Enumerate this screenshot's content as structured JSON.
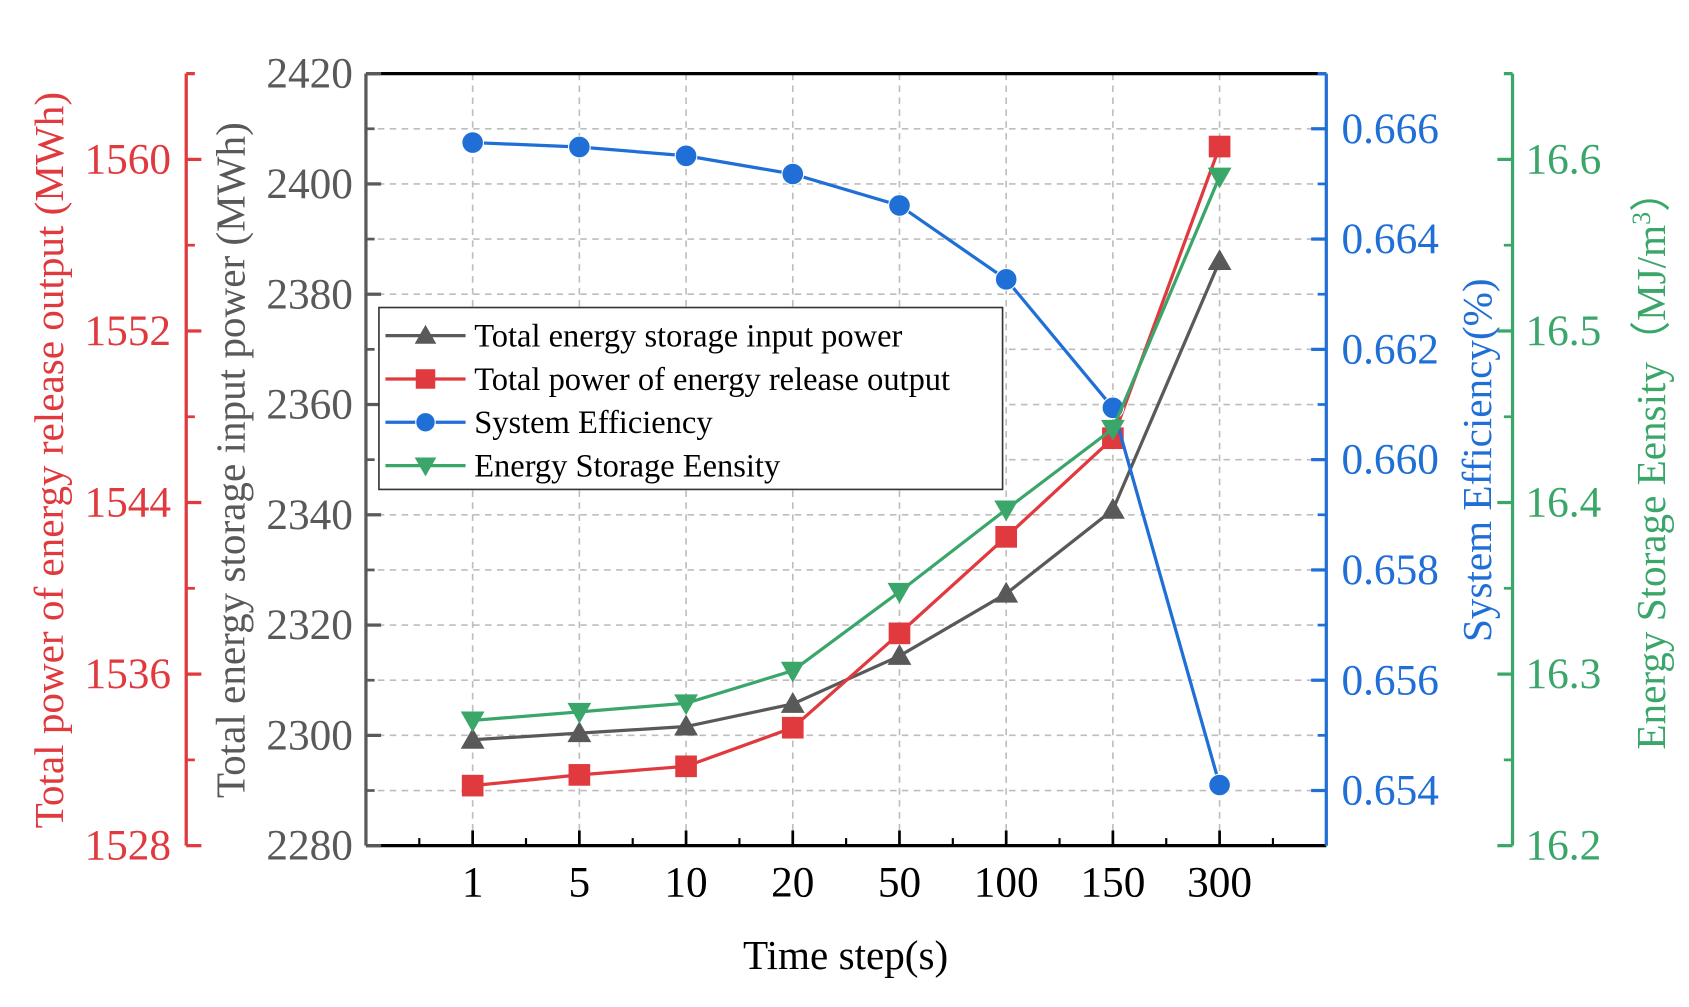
{
  "chart_data": {
    "type": "line",
    "title": "",
    "xlabel": "Time step(s)",
    "categories": [
      "1",
      "5",
      "10",
      "20",
      "50",
      "100",
      "150",
      "300"
    ],
    "grid": true,
    "legend_position": "upper-left (inside plot)",
    "axes": {
      "input_power": {
        "label": "Total energy storage input power (MWh)",
        "side": "left-inner",
        "color": "#595959",
        "range": [
          2280,
          2420
        ],
        "ticks": [
          "2280",
          "2300",
          "2320",
          "2340",
          "2360",
          "2380",
          "2400",
          "2420"
        ]
      },
      "release_power": {
        "label": "Total power of energy release output (MWh)",
        "side": "left-outer",
        "color": "#e0393e",
        "range": [
          1528,
          1564
        ],
        "ticks": [
          "1528",
          "1536",
          "1544",
          "1552",
          "1560"
        ]
      },
      "efficiency": {
        "label": "System Efficiency(%)",
        "side": "right-inner",
        "color": "#1f6fd6",
        "range": [
          0.653,
          0.667
        ],
        "ticks": [
          "0.654",
          "0.656",
          "0.658",
          "0.660",
          "0.662",
          "0.664",
          "0.666"
        ]
      },
      "density": {
        "label_main": "Energy Storage Eensity（MJ/m",
        "label_sup": "3",
        "label_end": "）",
        "side": "right-outer",
        "color": "#3aa66a",
        "range": [
          16.2,
          16.65
        ],
        "ticks": [
          "16.2",
          "16.3",
          "16.4",
          "16.5",
          "16.6"
        ]
      }
    },
    "series": [
      {
        "name": "Total energy storage input power",
        "axis": "input_power",
        "marker": "triangle-up",
        "color": "#595959",
        "values": [
          2299.2,
          2300.4,
          2301.6,
          2305.7,
          2314.4,
          2325.7,
          2340.9,
          2386.0
        ]
      },
      {
        "name": "Total power of energy release output",
        "axis": "release_power",
        "marker": "square",
        "color": "#e0393e",
        "values": [
          1530.8,
          1531.3,
          1531.7,
          1533.5,
          1537.9,
          1542.4,
          1547.0,
          1560.6
        ]
      },
      {
        "name": "System Efficiency",
        "axis": "efficiency",
        "marker": "circle",
        "color": "#1f6fd6",
        "values": [
          0.66575,
          0.66567,
          0.66551,
          0.66518,
          0.66461,
          0.66327,
          0.66094,
          0.6541
        ]
      },
      {
        "name": "Energy Storage Eensity",
        "axis": "density",
        "marker": "triangle-down",
        "color": "#3aa66a",
        "values": [
          16.273,
          16.278,
          16.283,
          16.302,
          16.348,
          16.396,
          16.443,
          16.59
        ]
      }
    ]
  }
}
